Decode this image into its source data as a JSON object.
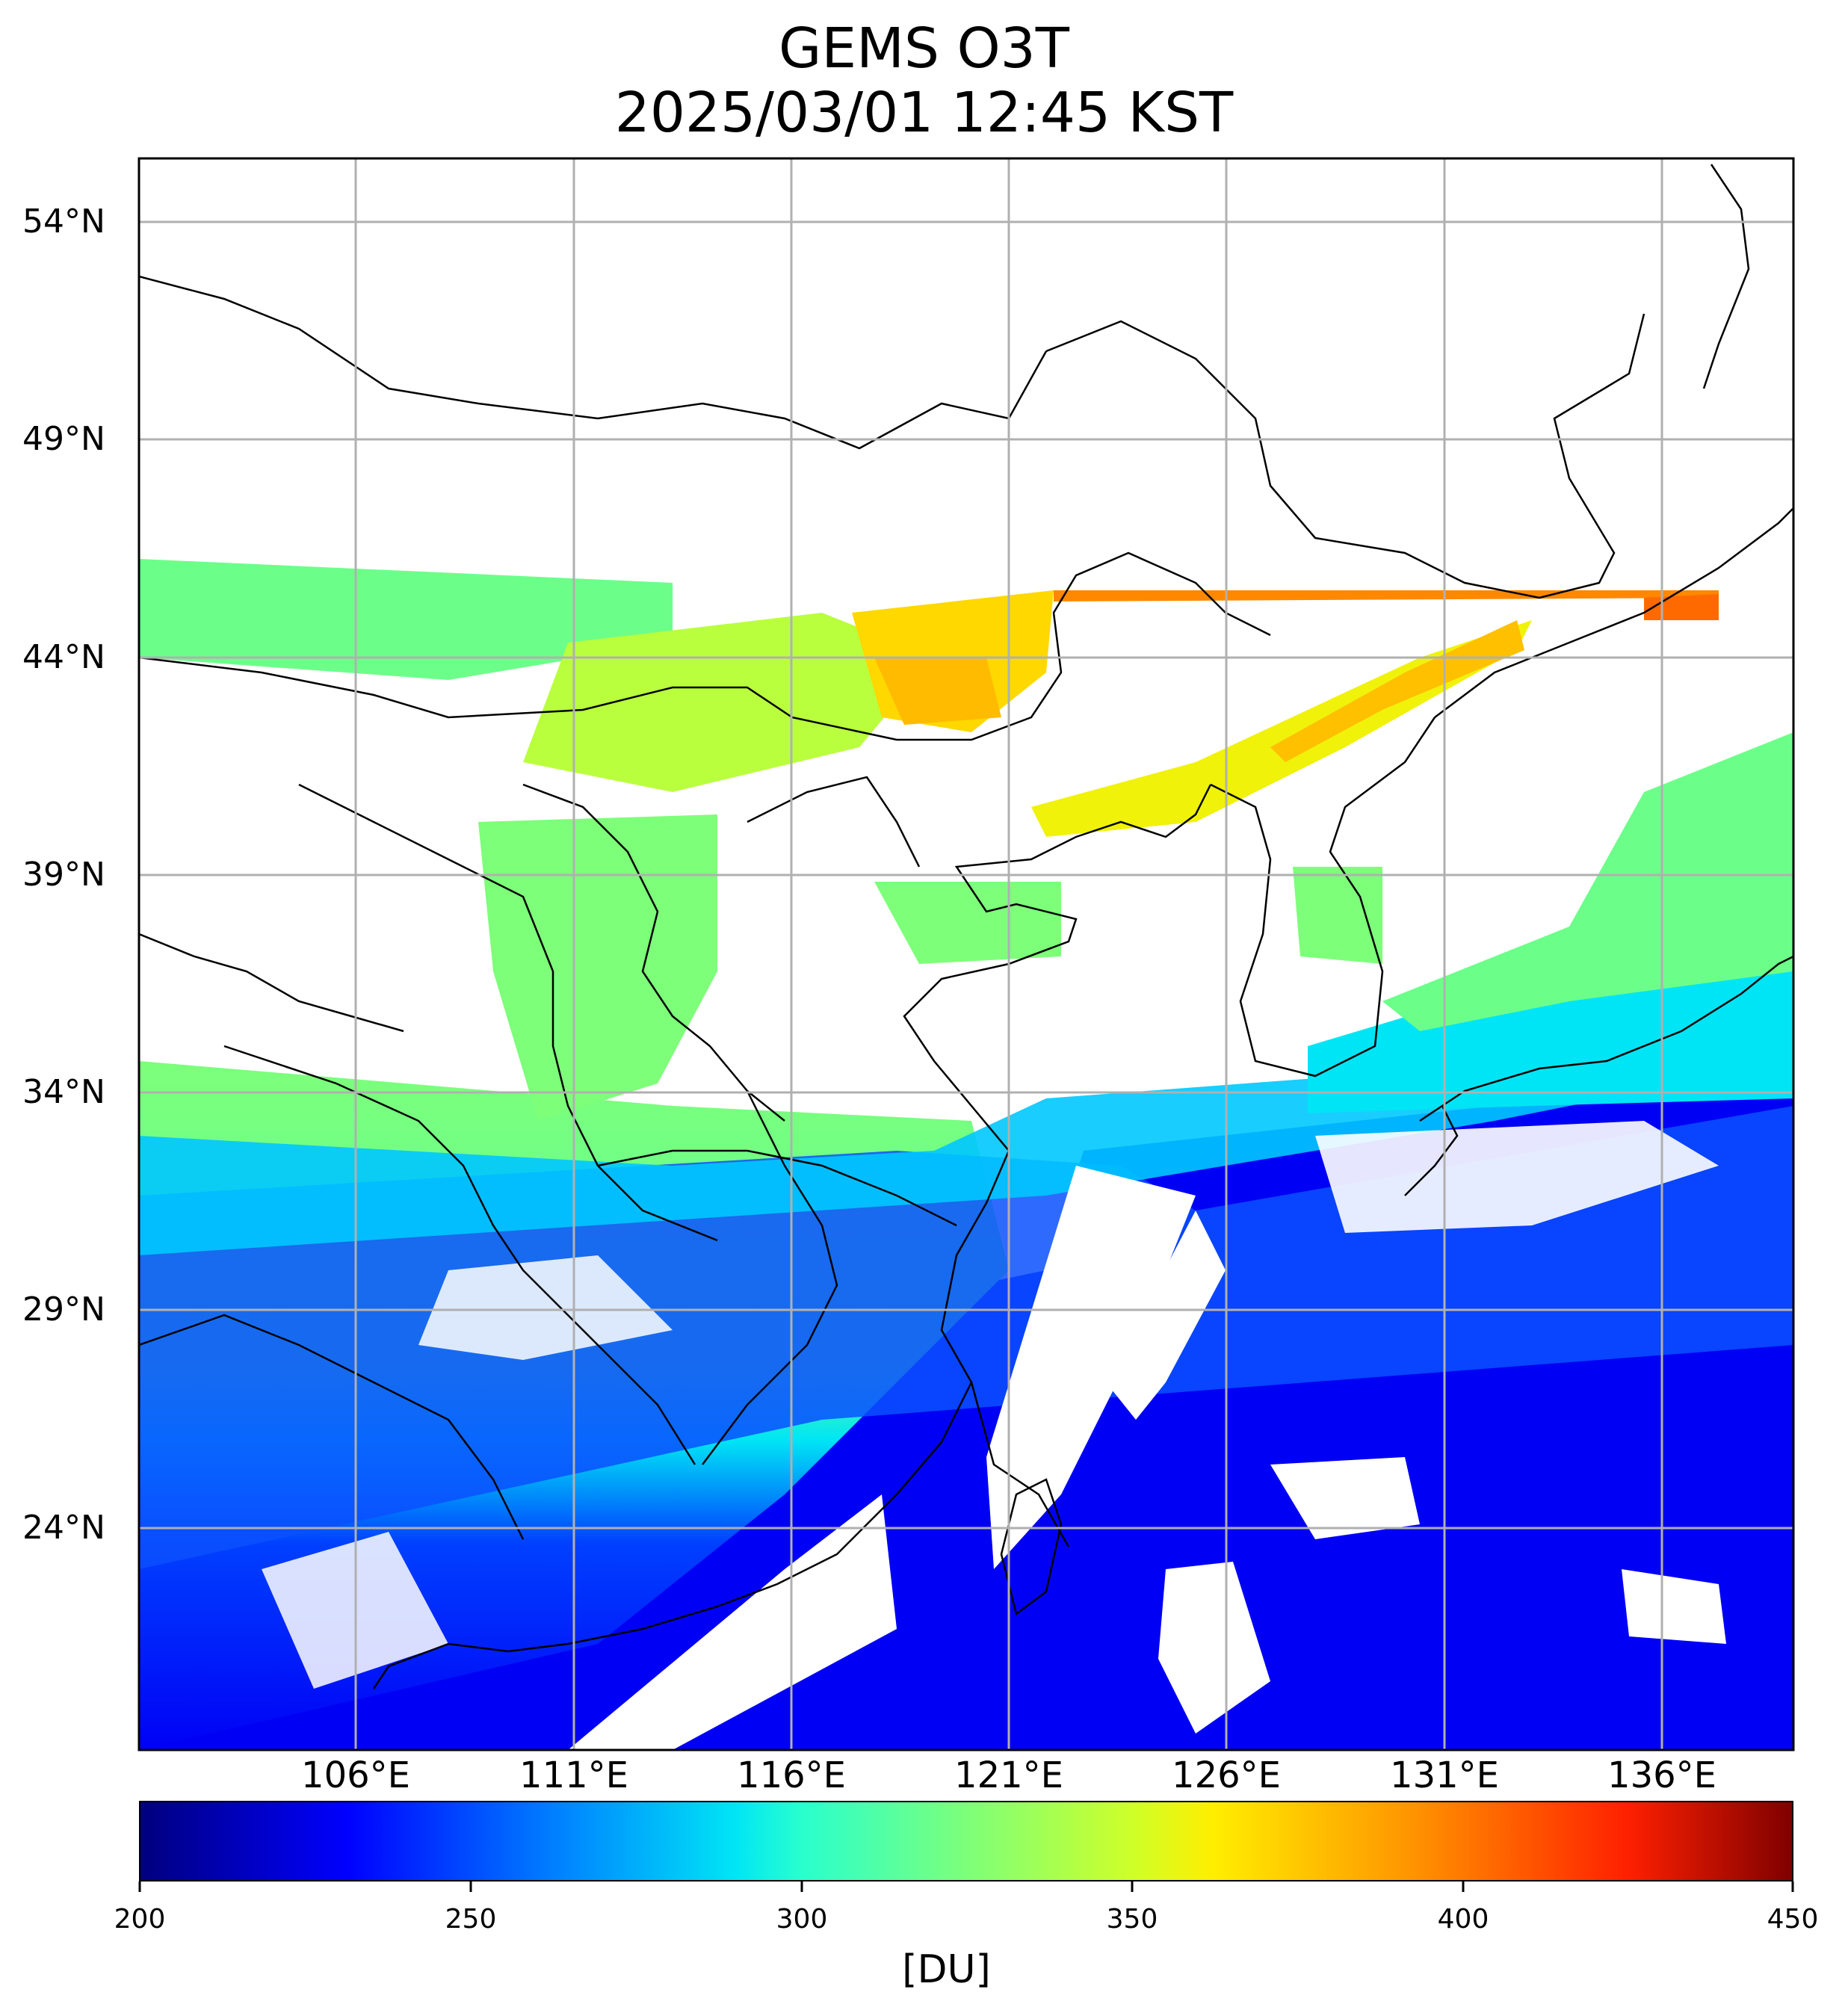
{
  "title": {
    "line1": "GEMS O3T",
    "line2": "2025/03/01 12:45 KST"
  },
  "map": {
    "lat_labels": [
      "54°N",
      "49°N",
      "44°N",
      "39°N",
      "34°N",
      "29°N",
      "24°N"
    ],
    "lon_labels": [
      "106°E",
      "111°E",
      "116°E",
      "121°E",
      "126°E",
      "131°E",
      "136°E"
    ],
    "gridlines": true,
    "colors": {
      "gridline": "#b0b0b0",
      "border": "#000000",
      "no_data": "#ffffff"
    }
  },
  "colorbar": {
    "ticks": [
      "200",
      "250",
      "300",
      "350",
      "400",
      "450"
    ],
    "unit": "[DU]",
    "range": [
      200,
      450
    ],
    "colormap": "jet"
  }
}
